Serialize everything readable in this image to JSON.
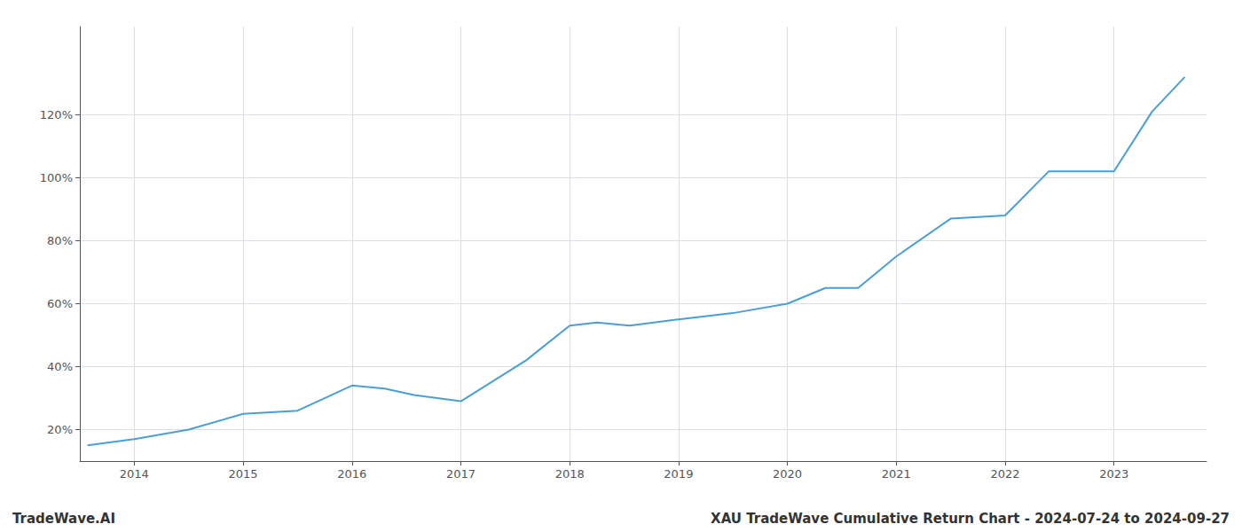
{
  "chart_data": {
    "type": "line",
    "x": [
      2013.57,
      2014.0,
      2014.5,
      2015.0,
      2015.5,
      2016.0,
      2016.3,
      2016.57,
      2017.0,
      2017.6,
      2018.0,
      2018.25,
      2018.55,
      2019.0,
      2019.5,
      2020.0,
      2020.35,
      2020.65,
      2021.0,
      2021.5,
      2022.0,
      2022.4,
      2023.0,
      2023.35,
      2023.65
    ],
    "values": [
      15,
      17,
      20,
      25,
      26,
      34,
      33,
      31,
      29,
      42,
      53,
      54,
      53,
      55,
      57,
      60,
      65,
      65,
      75,
      87,
      88,
      102,
      102,
      121,
      132
    ],
    "color": "#4a9fd4",
    "xlim": [
      2013.5,
      2023.85
    ],
    "ylim": [
      10,
      148
    ],
    "xticks": [
      2014,
      2015,
      2016,
      2017,
      2018,
      2019,
      2020,
      2021,
      2022,
      2023
    ],
    "yticks": [
      {
        "value": 20,
        "label": "20%"
      },
      {
        "value": 40,
        "label": "40%"
      },
      {
        "value": 60,
        "label": "60%"
      },
      {
        "value": 80,
        "label": "80%"
      },
      {
        "value": 100,
        "label": "100%"
      },
      {
        "value": 120,
        "label": "120%"
      }
    ],
    "grid": true,
    "annotations": [
      "TradeWave.AI",
      "XAU TradeWave Cumulative Return Chart - 2024-07-24 to 2024-09-27"
    ]
  }
}
